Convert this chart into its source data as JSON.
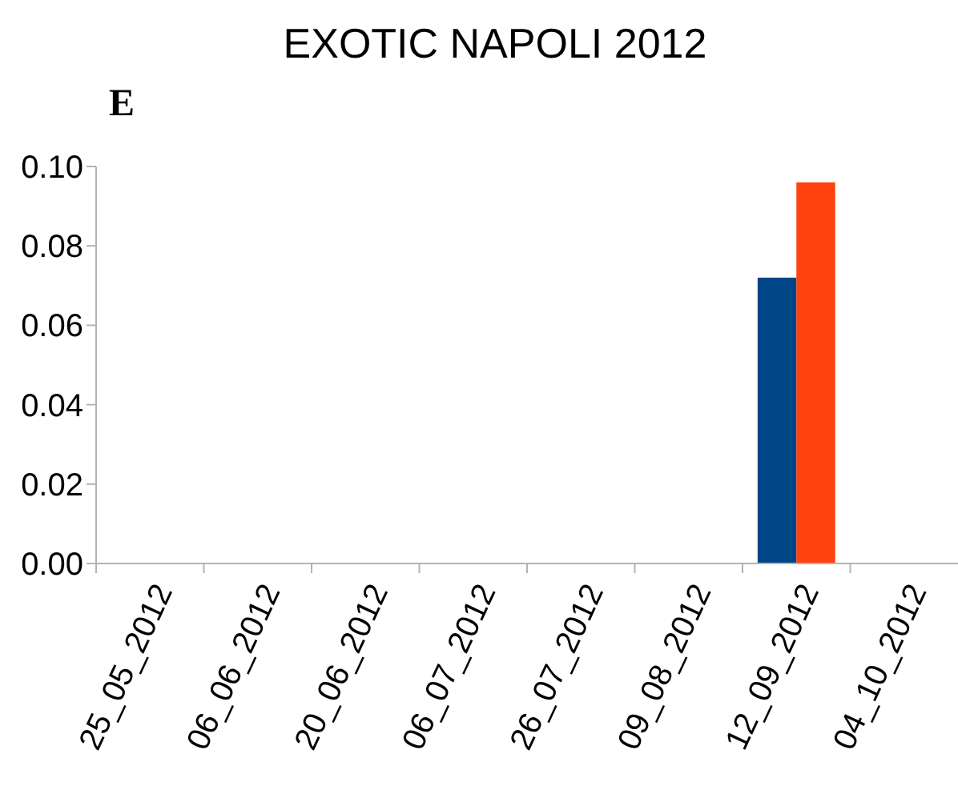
{
  "chart_data": {
    "type": "bar",
    "title": "EXOTIC NAPOLI 2012",
    "ylabel": "E",
    "categories": [
      "25_05_2012",
      "06_06_2012",
      "20_06_2012",
      "06_07_2012",
      "26_07_2012",
      "09_08_2012",
      "12_09_2012",
      "04_10_2012"
    ],
    "series": [
      {
        "color": "#004586",
        "values": [
          0,
          0,
          0,
          0,
          0,
          0,
          0.072,
          0
        ]
      },
      {
        "color": "#ff420e",
        "values": [
          0,
          0,
          0,
          0,
          0,
          0,
          0.096,
          0
        ]
      }
    ],
    "ylim": [
      0,
      0.1
    ],
    "yticks": [
      {
        "value": 0,
        "label": "0.00"
      },
      {
        "value": 0.02,
        "label": "0.02"
      },
      {
        "value": 0.04,
        "label": "0.04"
      },
      {
        "value": 0.06,
        "label": "0.06"
      },
      {
        "value": 0.08,
        "label": "0.08"
      },
      {
        "value": 0.1,
        "label": "0.10"
      }
    ],
    "grid": false
  }
}
